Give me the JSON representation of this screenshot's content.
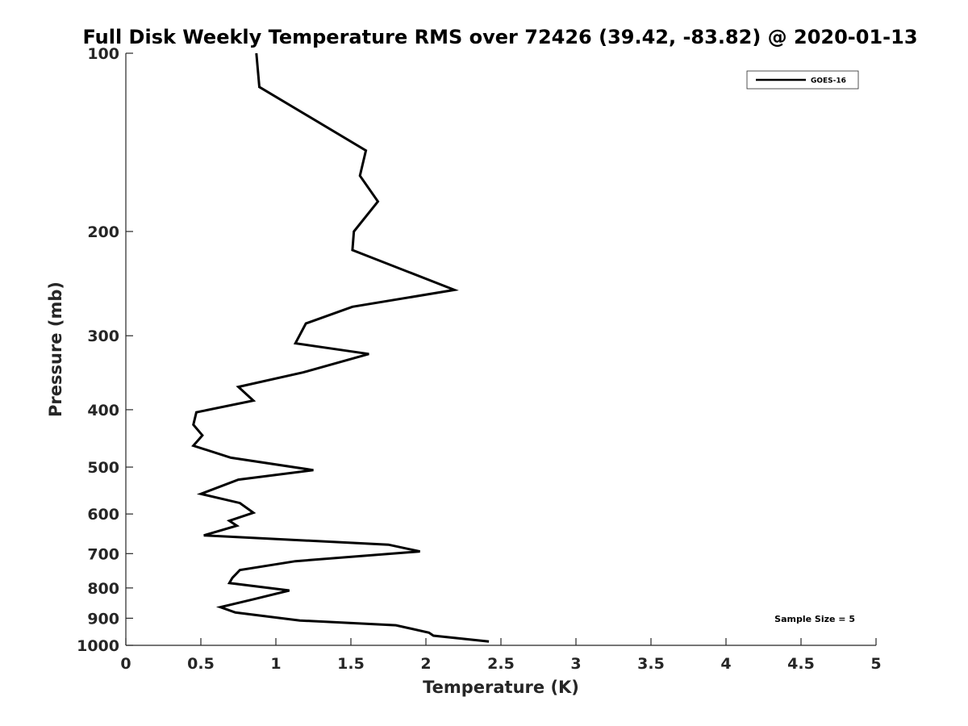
{
  "chart_data": {
    "type": "line",
    "title": "Full Disk Weekly Temperature RMS over 72426 (39.42, -83.82) @ 2020-01-13",
    "xlabel": "Temperature (K)",
    "ylabel": "Pressure (mb)",
    "xlim": [
      0,
      5
    ],
    "ylim": [
      100,
      1000
    ],
    "y_scale": "log",
    "y_reversed": true,
    "x_ticks": [
      0,
      0.5,
      1,
      1.5,
      2,
      2.5,
      3,
      3.5,
      4,
      4.5,
      5
    ],
    "x_tick_labels": [
      "0",
      "0.5",
      "1",
      "1.5",
      "2",
      "2.5",
      "3",
      "3.5",
      "4",
      "4.5",
      "5"
    ],
    "y_ticks": [
      100,
      200,
      300,
      400,
      500,
      600,
      700,
      800,
      900,
      1000
    ],
    "y_tick_labels": [
      "100",
      "200",
      "300",
      "400",
      "500",
      "600",
      "700",
      "800",
      "900",
      "1000"
    ],
    "grid": false,
    "legend_position": "top-right",
    "annotation": "Sample Size = 5",
    "series": [
      {
        "name": "GOES-16",
        "color": "#000000",
        "x": [
          0.87,
          0.89,
          1.6,
          1.56,
          1.68,
          1.52,
          1.51,
          2.19,
          1.51,
          1.2,
          1.13,
          1.62,
          1.18,
          0.75,
          0.85,
          0.47,
          0.45,
          0.51,
          0.45,
          0.7,
          1.25,
          0.75,
          0.5,
          0.76,
          0.85,
          0.69,
          0.74,
          0.52,
          1.75,
          1.96,
          1.13,
          0.76,
          0.71,
          0.69,
          1.09,
          0.85,
          0.63,
          0.73,
          1.16,
          1.8,
          2.02,
          2.05,
          2.42
        ],
        "y": [
          100,
          114,
          146,
          161,
          178,
          200,
          215,
          251,
          268,
          286,
          309,
          322,
          346,
          366,
          386,
          404,
          424,
          442,
          460,
          482,
          506,
          525,
          555,
          575,
          597,
          616,
          628,
          652,
          676,
          694,
          721,
          746,
          769,
          785,
          808,
          836,
          862,
          880,
          908,
          925,
          952,
          963,
          985
        ]
      }
    ]
  }
}
